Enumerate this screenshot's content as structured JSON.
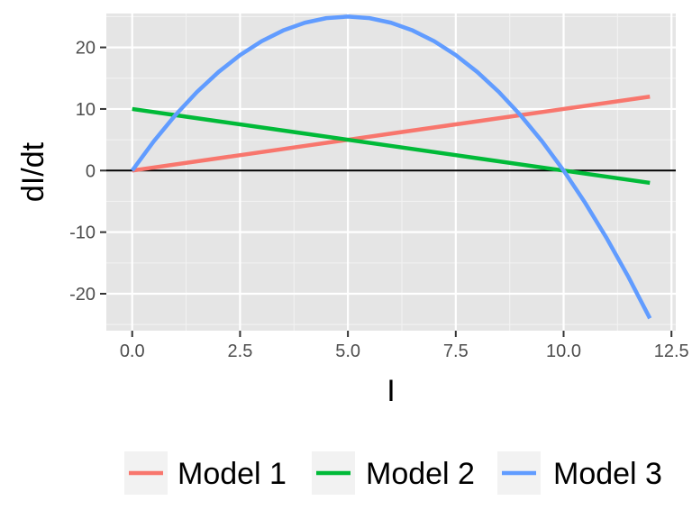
{
  "chart_data": {
    "type": "line",
    "xlabel": "I",
    "ylabel": "dI/dt",
    "xlim": [
      -0.6,
      12.6
    ],
    "ylim": [
      -26,
      25.5
    ],
    "x_ticks": [
      0,
      2.5,
      5,
      7.5,
      10,
      12.5
    ],
    "x_tick_labels": [
      "0.0",
      "2.5",
      "5.0",
      "7.5",
      "10.0",
      "12.5"
    ],
    "y_ticks": [
      -20,
      -10,
      0,
      10,
      20
    ],
    "y_tick_labels": [
      "-20",
      "-10",
      "0",
      "10",
      "20"
    ],
    "grid": true,
    "hline": 0,
    "legend_position": "bottom",
    "series": [
      {
        "name": "Model 1",
        "color": "#F8766D",
        "x": [
          0,
          2,
          4,
          6,
          8,
          10,
          12
        ],
        "y": [
          0,
          2,
          4,
          6,
          8,
          10,
          12
        ]
      },
      {
        "name": "Model 2",
        "color": "#00BA38",
        "x": [
          0,
          2,
          4,
          6,
          8,
          10,
          12
        ],
        "y": [
          10,
          8,
          6,
          4,
          2,
          0,
          -2
        ]
      },
      {
        "name": "Model 3",
        "color": "#619CFF",
        "x": [
          0,
          0.5,
          1,
          1.5,
          2,
          2.5,
          3,
          3.5,
          4,
          4.5,
          5,
          5.5,
          6,
          6.5,
          7,
          7.5,
          8,
          8.5,
          9,
          9.5,
          10,
          10.5,
          11,
          11.5,
          12
        ],
        "y": [
          0,
          4.75,
          9,
          12.75,
          16,
          18.75,
          21,
          22.75,
          24,
          24.75,
          25,
          24.75,
          24,
          22.75,
          21,
          18.75,
          16,
          12.75,
          9,
          4.75,
          0,
          -5.25,
          -11,
          -17.25,
          -24
        ]
      }
    ]
  }
}
